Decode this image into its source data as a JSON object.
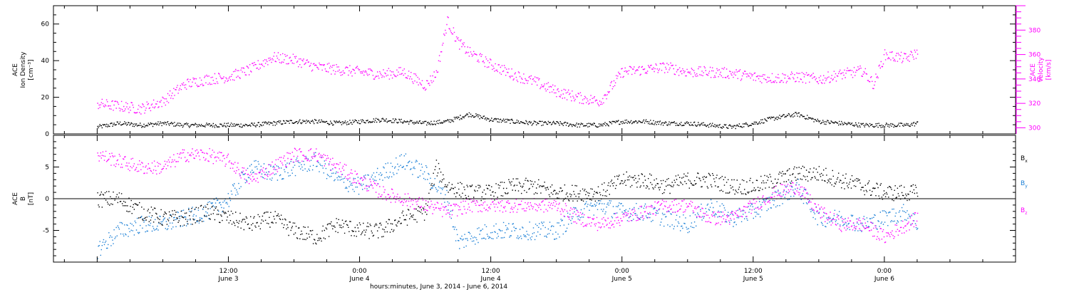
{
  "chart_data": [
    {
      "type": "scatter",
      "panel": "top",
      "left_axis_label": [
        "ACE",
        "Ion Density",
        "[cm⁻³]"
      ],
      "right_axis_label": [
        "ACE",
        "Velocity",
        "[km/s]"
      ],
      "left_ylim": [
        0,
        70
      ],
      "left_yticks": [
        0,
        20,
        40,
        60
      ],
      "right_ylim": [
        295,
        400
      ],
      "right_yticks": [
        300,
        320,
        340,
        360,
        380
      ],
      "colors": {
        "density": "#000000",
        "velocity": "#ff00ff"
      },
      "series": [
        {
          "name": "Ion Density",
          "axis": "left",
          "x_hours": [
            0,
            2,
            4,
            6,
            8,
            10,
            12,
            14,
            16,
            18,
            20,
            22,
            24,
            26,
            28,
            30,
            32,
            34,
            36,
            38,
            40,
            42,
            44,
            46,
            48,
            50,
            52,
            54,
            56,
            58,
            60,
            62,
            64,
            66,
            68,
            70,
            72,
            74,
            75
          ],
          "y": [
            4,
            6,
            5,
            6,
            5,
            5,
            5,
            5,
            6,
            7,
            7,
            6,
            7,
            8,
            7,
            6,
            7,
            11,
            8,
            7,
            6,
            6,
            5,
            5,
            7,
            7,
            6,
            6,
            5,
            4,
            6,
            9,
            11,
            7,
            6,
            5,
            5,
            5,
            6
          ]
        },
        {
          "name": "Velocity",
          "axis": "right",
          "x_hours": [
            0,
            2,
            4,
            6,
            8,
            10,
            12,
            14,
            16,
            18,
            20,
            22,
            24,
            26,
            28,
            30,
            31,
            32,
            33,
            34,
            36,
            38,
            40,
            42,
            44,
            46,
            48,
            50,
            52,
            54,
            56,
            58,
            60,
            62,
            64,
            66,
            68,
            70,
            71,
            72,
            74,
            75
          ],
          "y": [
            320,
            318,
            316,
            322,
            336,
            340,
            342,
            348,
            358,
            356,
            350,
            348,
            346,
            344,
            346,
            335,
            345,
            388,
            370,
            362,
            352,
            344,
            338,
            330,
            325,
            322,
            346,
            348,
            350,
            346,
            346,
            345,
            342,
            341,
            342,
            340,
            344,
            347,
            336,
            360,
            357,
            362
          ]
        }
      ]
    },
    {
      "type": "scatter",
      "panel": "bottom",
      "left_axis_label": [
        "ACE",
        "B",
        "[nT]"
      ],
      "ylim": [
        -10,
        10
      ],
      "yticks": [
        -5,
        0,
        5
      ],
      "zero_line": true,
      "colors": {
        "Bx": "#000000",
        "By": "#1a7fd6",
        "Bz": "#ff00ff"
      },
      "series": [
        {
          "name": "Bx",
          "x_hours": [
            0,
            2,
            4,
            6,
            8,
            10,
            12,
            14,
            16,
            18,
            20,
            22,
            24,
            26,
            28,
            30,
            31,
            32,
            34,
            36,
            38,
            40,
            42,
            44,
            46,
            48,
            50,
            52,
            54,
            56,
            58,
            60,
            62,
            64,
            66,
            68,
            70,
            72,
            74,
            75
          ],
          "y": [
            0,
            0,
            -2,
            -3,
            -3,
            -2,
            -3,
            -4,
            -3,
            -5,
            -6,
            -4,
            -5,
            -5,
            -3,
            -2,
            5,
            2,
            1,
            1,
            2,
            2,
            1,
            1,
            1,
            3,
            3,
            2,
            3,
            3,
            2,
            2,
            3,
            4,
            4,
            3,
            2,
            1,
            1,
            1
          ]
        },
        {
          "name": "By",
          "x_hours": [
            0,
            2,
            4,
            6,
            8,
            10,
            12,
            14,
            16,
            18,
            20,
            22,
            24,
            26,
            28,
            30,
            32,
            33,
            34,
            36,
            38,
            40,
            42,
            44,
            46,
            48,
            50,
            52,
            54,
            56,
            58,
            60,
            62,
            64,
            66,
            68,
            70,
            72,
            74,
            75
          ],
          "y": [
            -8,
            -5,
            -4,
            -4,
            -3,
            -2,
            0,
            5,
            4,
            5,
            6,
            3,
            2,
            4,
            6,
            4,
            0,
            -7,
            -6,
            -5,
            -5,
            -5,
            -5,
            -2,
            -1,
            -2,
            -2,
            -3,
            -4,
            -1,
            -3,
            -2,
            0,
            2,
            -3,
            -3,
            -4,
            -3,
            -2,
            -4
          ]
        },
        {
          "name": "Bz",
          "x_hours": [
            0,
            2,
            4,
            6,
            8,
            10,
            12,
            14,
            16,
            18,
            20,
            22,
            24,
            26,
            28,
            30,
            32,
            34,
            36,
            38,
            40,
            42,
            44,
            46,
            48,
            50,
            52,
            54,
            56,
            58,
            60,
            62,
            64,
            66,
            68,
            70,
            72,
            74,
            75
          ],
          "y": [
            7,
            6,
            5,
            5,
            7,
            7,
            6,
            3,
            5,
            7,
            7,
            5,
            3,
            1,
            0,
            -1,
            -2,
            -1,
            -1,
            -1,
            -1,
            -1,
            -3,
            -4,
            -3,
            -2,
            -1,
            -1,
            -3,
            -3,
            -1,
            1,
            2,
            -2,
            -4,
            -4,
            -6,
            -4,
            -3
          ]
        }
      ],
      "legend": [
        {
          "label": "B",
          "sub": "x"
        },
        {
          "label": "B",
          "sub": "y"
        },
        {
          "label": "B",
          "sub": "z"
        }
      ]
    }
  ],
  "x_axis": {
    "range_hours": [
      -4,
      84
    ],
    "ticks": [
      {
        "hour": 12,
        "time": "12:00",
        "date": "June 3"
      },
      {
        "hour": 24,
        "time": "0:00",
        "date": "June 4"
      },
      {
        "hour": 36,
        "time": "12:00",
        "date": "June 4"
      },
      {
        "hour": 48,
        "time": "0:00",
        "date": "June 5"
      },
      {
        "hour": 60,
        "time": "12:00",
        "date": "June 5"
      },
      {
        "hour": 72,
        "time": "0:00",
        "date": "June 6"
      }
    ],
    "title": "hours:minutes, June  3, 2014 - June  6, 2014"
  }
}
